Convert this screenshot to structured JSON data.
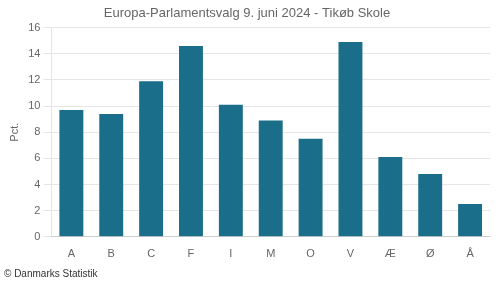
{
  "chart_data": {
    "type": "bar",
    "title": "Europa-Parlamentsvalg 9. juni 2024 - Tikøb Skole",
    "ylabel": "Pct.",
    "footer": "© Danmarks Statistik",
    "categories": [
      "A",
      "B",
      "C",
      "F",
      "I",
      "M",
      "O",
      "V",
      "Æ",
      "Ø",
      "Å"
    ],
    "values": [
      9.7,
      9.4,
      11.9,
      14.6,
      10.1,
      8.9,
      7.5,
      14.9,
      6.1,
      4.8,
      2.5
    ],
    "color": "#1a6e8a",
    "ylim": [
      0,
      16
    ],
    "yticks": [
      0,
      2,
      4,
      6,
      8,
      10,
      12,
      14,
      16
    ],
    "grid": true
  }
}
